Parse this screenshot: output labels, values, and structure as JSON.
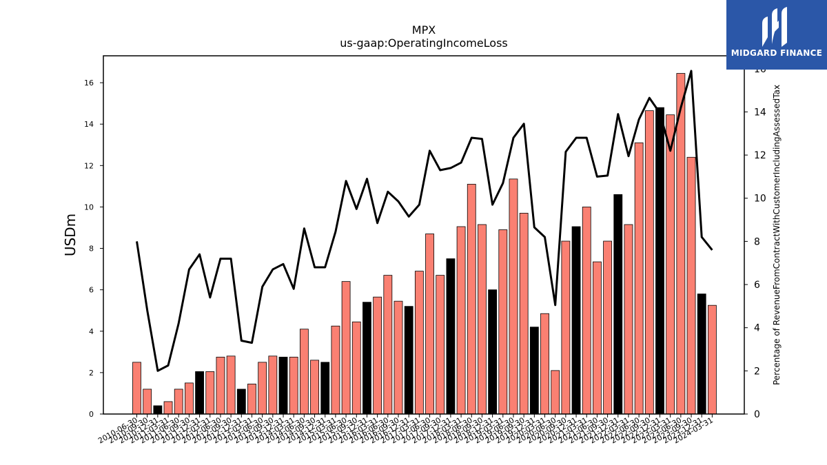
{
  "chart_data": {
    "type": "bar",
    "title": "MPX",
    "subtitle": "us-gaap:OperatingIncomeLoss",
    "ylabel": "USDm",
    "y2label": "Percentage of RevenueFromContractWithCustomerIncludingAssessedTax",
    "ylim": [
      0,
      17.3
    ],
    "y2lim": [
      0,
      16.6
    ],
    "yticks": [
      0,
      2,
      4,
      6,
      8,
      10,
      12,
      14,
      16
    ],
    "y2ticks": [
      0,
      2,
      4,
      6,
      8,
      10,
      12,
      14,
      16
    ],
    "categories": [
      "2010-06-30",
      "2010-09-30",
      "2010-12-31",
      "2011-03-31",
      "2011-06-30",
      "2011-09-30",
      "2011-12-31",
      "2012-03-31",
      "2012-06-30",
      "2012-09-30",
      "2012-12-31",
      "2013-03-31",
      "2013-06-30",
      "2013-09-30",
      "2013-12-31",
      "2014-03-31",
      "2014-06-30",
      "2014-09-30",
      "2014-12-31",
      "2015-03-31",
      "2015-06-30",
      "2015-09-30",
      "2015-12-31",
      "2016-03-31",
      "2016-06-30",
      "2016-09-30",
      "2016-12-31",
      "2017-03-31",
      "2017-06-30",
      "2017-09-30",
      "2017-12-31",
      "2018-03-31",
      "2018-06-30",
      "2018-09-30",
      "2018-12-31",
      "2019-03-31",
      "2019-06-30",
      "2019-09-30",
      "2019-12-31",
      "2020-03-31",
      "2020-06-30",
      "2020-09-30",
      "2020-12-31",
      "2021-03-31",
      "2021-06-30",
      "2021-09-30",
      "2021-12-31",
      "2022-03-31",
      "2022-06-30",
      "2022-09-30",
      "2022-12-31",
      "2023-03-31",
      "2023-06-30",
      "2023-09-30",
      "2023-12-31",
      "2024-03-31"
    ],
    "series": [
      {
        "kind": "bar",
        "values": [
          2.5,
          1.2,
          0.4,
          0.6,
          1.2,
          1.5,
          2.05,
          2.05,
          2.75,
          2.8,
          1.2,
          1.45,
          2.5,
          2.8,
          2.75,
          2.75,
          4.1,
          2.6,
          2.5,
          4.25,
          6.4,
          4.45,
          5.4,
          5.65,
          6.7,
          5.45,
          5.2,
          6.9,
          8.7,
          6.7,
          7.5,
          9.05,
          11.1,
          9.15,
          6.0,
          8.9,
          11.35,
          9.7,
          4.2,
          4.85,
          2.1,
          8.35,
          9.05,
          10.0,
          7.35,
          8.35,
          10.6,
          9.15,
          13.1,
          14.65,
          14.8,
          14.45,
          16.45,
          12.4,
          5.8,
          5.25
        ],
        "colors": [
          "salmon",
          "salmon",
          "black",
          "salmon",
          "salmon",
          "salmon",
          "black",
          "salmon",
          "salmon",
          "salmon",
          "black",
          "salmon",
          "salmon",
          "salmon",
          "black",
          "salmon",
          "salmon",
          "salmon",
          "black",
          "salmon",
          "salmon",
          "salmon",
          "black",
          "salmon",
          "salmon",
          "salmon",
          "black",
          "salmon",
          "salmon",
          "salmon",
          "black",
          "salmon",
          "salmon",
          "salmon",
          "black",
          "salmon",
          "salmon",
          "salmon",
          "black",
          "salmon",
          "salmon",
          "salmon",
          "black",
          "salmon",
          "salmon",
          "salmon",
          "black",
          "salmon",
          "salmon",
          "salmon",
          "black",
          "salmon",
          "salmon",
          "salmon",
          "black",
          "salmon"
        ]
      },
      {
        "kind": "line",
        "axis": "right",
        "values": [
          8.0,
          4.8,
          2.0,
          2.25,
          4.2,
          6.7,
          7.4,
          5.4,
          7.2,
          7.2,
          3.4,
          3.3,
          5.9,
          6.7,
          6.95,
          5.8,
          8.6,
          6.8,
          6.8,
          8.45,
          10.8,
          9.5,
          10.9,
          8.85,
          10.3,
          9.85,
          9.15,
          9.7,
          12.2,
          11.3,
          11.4,
          11.65,
          12.8,
          12.75,
          9.7,
          10.7,
          12.8,
          13.45,
          8.65,
          8.2,
          5.05,
          12.15,
          12.8,
          12.8,
          11.0,
          11.05,
          13.9,
          11.95,
          13.65,
          14.65,
          13.95,
          12.2,
          14.2,
          15.9,
          8.2,
          7.6
        ]
      }
    ],
    "colors": {
      "salmon": "#fa8072",
      "black": "#000000",
      "line": "#000000"
    },
    "legend": "none",
    "grid": false
  },
  "logo": {
    "text": "MIDGARD FINANCE",
    "icon": "midgard-logo-mark"
  }
}
